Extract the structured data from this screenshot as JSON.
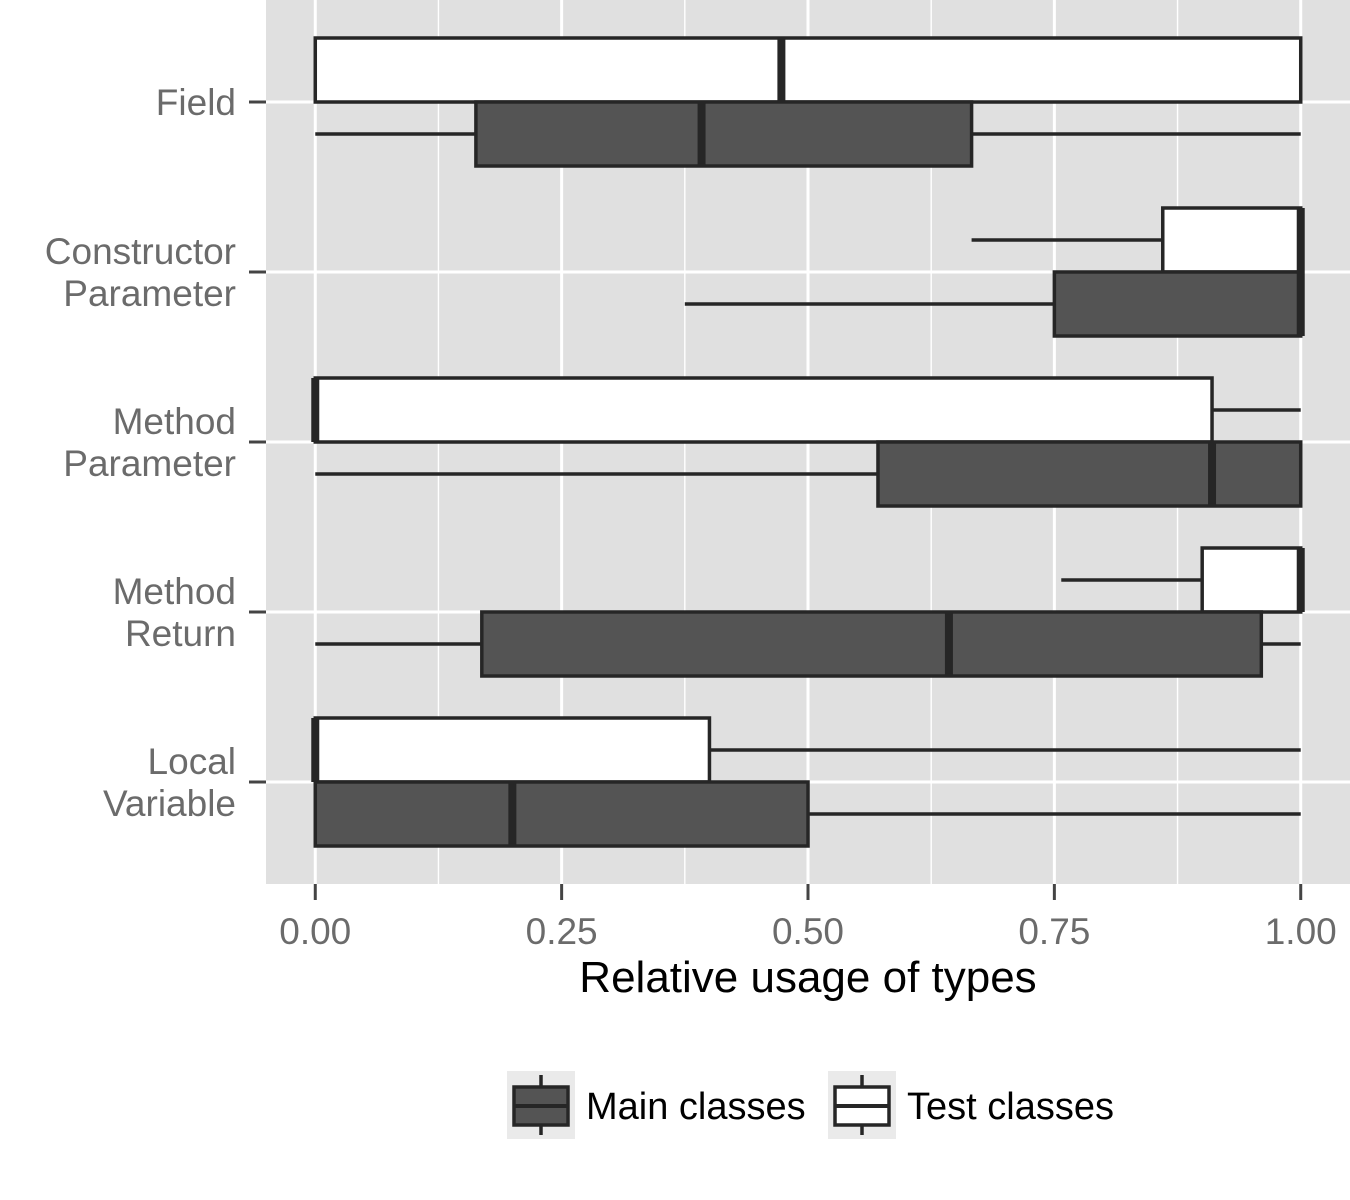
{
  "chart_data": {
    "type": "boxplot",
    "orientation": "horizontal",
    "xlabel": "Relative usage of types",
    "xlim": [
      -0.05,
      1.05
    ],
    "xticks": [
      0,
      0.25,
      0.5,
      0.75,
      1
    ],
    "xtick_labels": [
      "0.00",
      "0.25",
      "0.50",
      "0.75",
      "1.00"
    ],
    "grid": true,
    "legend_position": "bottom",
    "categories": [
      {
        "lines": [
          "Field"
        ]
      },
      {
        "lines": [
          "Constructor",
          "Parameter"
        ]
      },
      {
        "lines": [
          "Method",
          "Parameter"
        ]
      },
      {
        "lines": [
          "Method",
          "Return"
        ]
      },
      {
        "lines": [
          "Local",
          "Variable"
        ]
      }
    ],
    "series": [
      {
        "name": "Main classes",
        "fill": "#545454",
        "boxes": [
          {
            "whisker_low": 0.0,
            "q1": 0.163,
            "median": 0.392,
            "q3": 0.666,
            "whisker_high": 1.0
          },
          {
            "whisker_low": 0.375,
            "q1": 0.75,
            "median": 1.0,
            "q3": 1.0,
            "whisker_high": 1.0
          },
          {
            "whisker_low": 0.0,
            "q1": 0.571,
            "median": 0.91,
            "q3": 1.0,
            "whisker_high": 1.0
          },
          {
            "whisker_low": 0.0,
            "q1": 0.169,
            "median": 0.643,
            "q3": 0.96,
            "whisker_high": 1.0
          },
          {
            "whisker_low": 0.0,
            "q1": 0.0,
            "median": 0.2,
            "q3": 0.5,
            "whisker_high": 1.0
          }
        ]
      },
      {
        "name": "Test classes",
        "fill": "#ffffff",
        "boxes": [
          {
            "whisker_low": 0.0,
            "q1": 0.0,
            "median": 0.473,
            "q3": 1.0,
            "whisker_high": 1.0
          },
          {
            "whisker_low": 0.666,
            "q1": 0.86,
            "median": 1.0,
            "q3": 1.0,
            "whisker_high": 1.0
          },
          {
            "whisker_low": 0.0,
            "q1": 0.0,
            "median": 0.0,
            "q3": 0.91,
            "whisker_high": 1.0
          },
          {
            "whisker_low": 0.757,
            "q1": 0.9,
            "median": 1.0,
            "q3": 1.0,
            "whisker_high": 1.0
          },
          {
            "whisker_low": 0.0,
            "q1": 0.0,
            "median": 0.0,
            "q3": 0.4,
            "whisker_high": 1.0
          }
        ]
      }
    ]
  },
  "colors": {
    "panel": "#e0e0e0",
    "grid": "#ffffff",
    "outline": "#262626",
    "legend_key_bg": "#eaeaea"
  }
}
